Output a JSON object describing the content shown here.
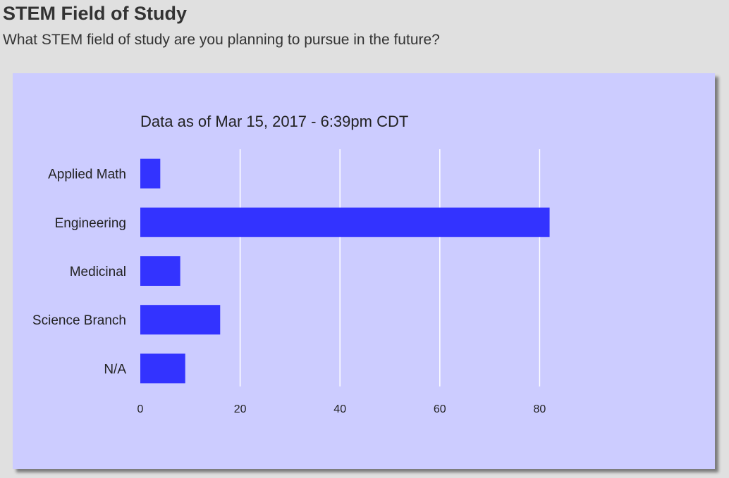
{
  "page": {
    "title": "STEM Field of Study",
    "subtitle": "What STEM field of study are you planning to pursue in the future?"
  },
  "colors": {
    "page_background": "#e0e0e0",
    "chart_background": "#ccccff",
    "bar": "#3333ff",
    "gridline": "#ffffff",
    "text": "#333333"
  },
  "chart_data": {
    "type": "bar",
    "orientation": "horizontal",
    "title": "Data as of Mar 15, 2017 - 6:39pm CDT",
    "categories": [
      "Applied Math",
      "Engineering",
      "Medicinal",
      "Science Branch",
      "N/A"
    ],
    "values": [
      4,
      82,
      8,
      16,
      9
    ],
    "xlim": [
      0,
      100
    ],
    "xticks": [
      0,
      20,
      40,
      60,
      80
    ],
    "xlabel": "",
    "ylabel": "",
    "grid": true,
    "legend": "none"
  }
}
